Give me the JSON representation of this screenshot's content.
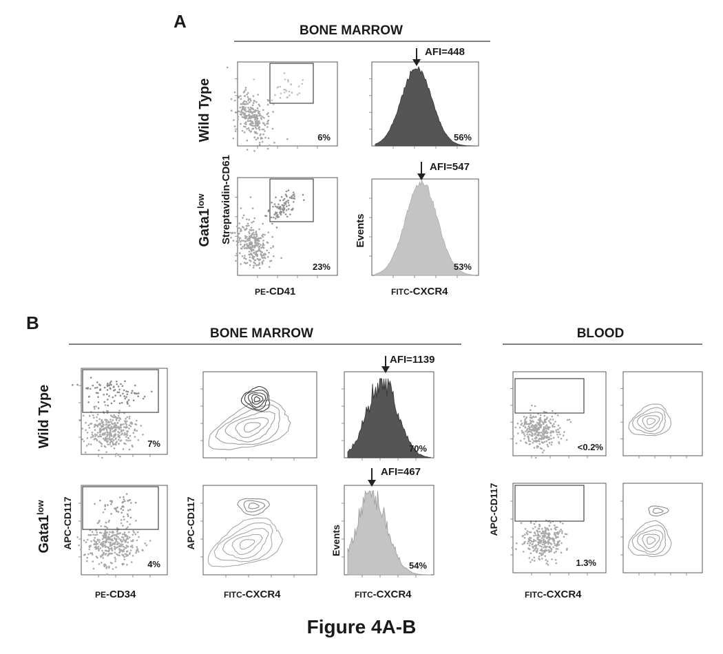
{
  "figure_title": "Figure 4A-B",
  "panel_a": {
    "letter": "A",
    "header": "BONE MARROW",
    "rows": [
      "Wild Type",
      "Gata1"
    ],
    "row_superscript": "low",
    "y_label_scatter": "Streptavidin-CD61",
    "y_label_hist": "Events",
    "x_label_scatter": {
      "prefix": "PE",
      "rest": "-CD41"
    },
    "x_label_hist": {
      "prefix": "FITC",
      "rest": "-CXCR4"
    },
    "scatter_percent": [
      "6%",
      "23%"
    ],
    "hist_percent": [
      "56%",
      "53%"
    ],
    "afi": [
      "AFI=448",
      "AFI=547"
    ]
  },
  "panel_b": {
    "letter": "B",
    "header_bm": "BONE MARROW",
    "header_blood": "BLOOD",
    "rows": [
      "Wild Type",
      "Gata1"
    ],
    "row_superscript": "low",
    "y_label": "APC-CD117",
    "y_label_hist": "Events",
    "x_label_cd34": {
      "prefix": "PE",
      "rest": "-CD34"
    },
    "x_label_cxcr4": {
      "prefix": "FITC",
      "rest": "-CXCR4"
    },
    "cd34_percent": [
      "7%",
      "4%"
    ],
    "hist_percent": [
      "70%",
      "54%"
    ],
    "afi": [
      "AFI=1139",
      "AFI=467"
    ],
    "blood_percent": [
      "<0.2%",
      "1.3%"
    ]
  },
  "colors": {
    "dark_histogram": "#555555",
    "light_histogram": "#c4c4c4",
    "scatter_dots": "#9a9a9a"
  }
}
